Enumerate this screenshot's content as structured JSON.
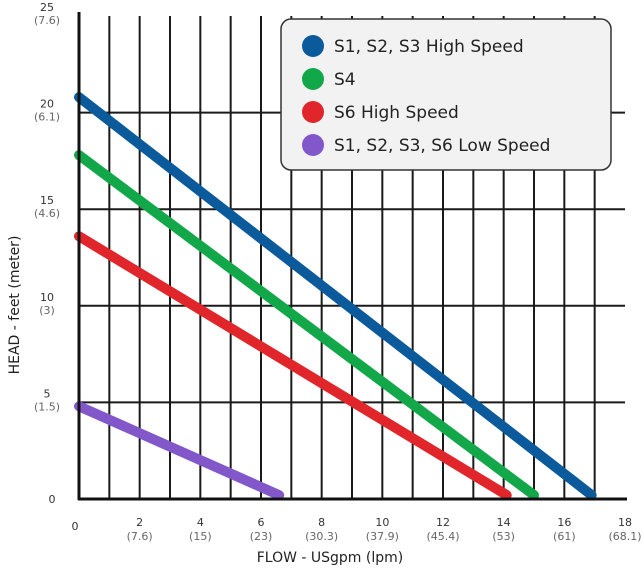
{
  "chart_data": {
    "type": "line",
    "xlabel": "FLOW - USgpm (lpm)",
    "ylabel": "HEAD - feet (meter)",
    "xlim": [
      0,
      18
    ],
    "ylim": [
      0,
      25
    ],
    "grid": true,
    "legend_position": "top-right",
    "x_ticks": [
      {
        "value": 0,
        "label": "0",
        "sub": ""
      },
      {
        "value": 2,
        "label": "2",
        "sub": "(7.6)"
      },
      {
        "value": 4,
        "label": "4",
        "sub": "(15)"
      },
      {
        "value": 6,
        "label": "6",
        "sub": "(23)"
      },
      {
        "value": 8,
        "label": "8",
        "sub": "(30.3)"
      },
      {
        "value": 10,
        "label": "10",
        "sub": "(37.9)"
      },
      {
        "value": 12,
        "label": "12",
        "sub": "(45.4)"
      },
      {
        "value": 14,
        "label": "14",
        "sub": "(53)"
      },
      {
        "value": 16,
        "label": "16",
        "sub": "(61)"
      },
      {
        "value": 18,
        "label": "18",
        "sub": "(68.1)"
      }
    ],
    "y_ticks": [
      {
        "value": 0,
        "label": "0",
        "sub": ""
      },
      {
        "value": 5,
        "label": "5",
        "sub": "(1.5)"
      },
      {
        "value": 10,
        "label": "10",
        "sub": "(3)"
      },
      {
        "value": 15,
        "label": "15",
        "sub": "(4.6)"
      },
      {
        "value": 20,
        "label": "20",
        "sub": "(6.1)"
      },
      {
        "value": 25,
        "label": "25",
        "sub": "(7.6)"
      }
    ],
    "series": [
      {
        "name": "S1, S2, S3 High Speed",
        "color": "#0A5A9C",
        "x": [
          0,
          16.9
        ],
        "y": [
          20.8,
          0.2
        ]
      },
      {
        "name": "S4",
        "color": "#12A84A",
        "x": [
          0,
          15.0
        ],
        "y": [
          17.8,
          0.2
        ]
      },
      {
        "name": "S6 High Speed",
        "color": "#E0252B",
        "x": [
          0,
          14.1
        ],
        "y": [
          13.6,
          0.2
        ]
      },
      {
        "name": "S1, S2, S3, S6  Low Speed",
        "color": "#8257C9",
        "x": [
          0,
          6.6
        ],
        "y": [
          4.8,
          0.2
        ]
      }
    ]
  }
}
